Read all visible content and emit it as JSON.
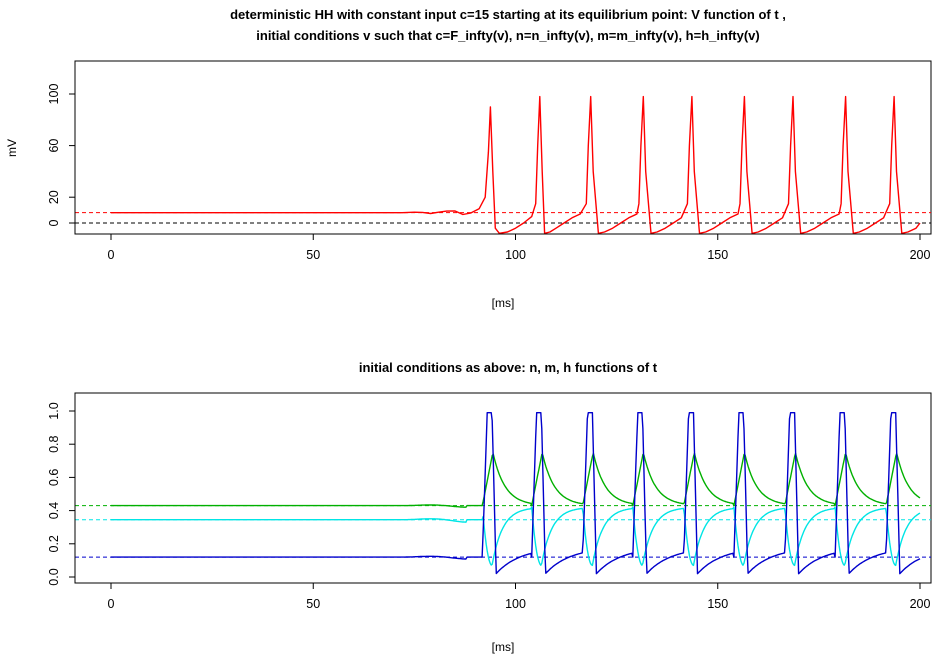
{
  "chart_data": [
    {
      "type": "line",
      "title_line1": "deterministic HH with constant input c=15 starting at its equilibrium point:  V  function of  t ,",
      "title_line2": "initial conditions v such that c=F_infty(v), n=n_infty(v), m=m_infty(v), h=h_infty(v)",
      "xlabel": "[ms]",
      "ylabel": "mV",
      "xlim": [
        0,
        200
      ],
      "ylim": [
        -10,
        120
      ],
      "x_ticks": [
        "0",
        "50",
        "100",
        "150",
        "200"
      ],
      "y_ticks": [
        "0",
        "20",
        "60",
        "100"
      ],
      "grid": false,
      "reference_lines": [
        {
          "y": 0,
          "color": "#000000",
          "style": "dashed"
        },
        {
          "y": 8,
          "color": "#ff0000",
          "style": "dashed"
        }
      ],
      "series": [
        {
          "color": "#ff0000",
          "x": [
            0,
            72,
            75,
            77,
            79,
            81,
            83,
            85,
            87,
            89,
            91,
            92.5,
            93.3,
            93.8,
            94.4,
            95,
            96,
            98,
            100,
            102,
            104,
            105,
            105.5,
            106,
            106.6,
            107.2,
            108.5,
            110,
            112,
            114,
            116,
            117.5,
            118,
            118.6,
            119.2,
            120.5,
            122,
            124,
            126,
            128,
            130,
            130.5,
            131,
            131.6,
            132.2,
            133.5,
            135,
            137,
            139,
            141,
            142.5,
            143,
            143.6,
            144.2,
            145.5,
            147,
            149,
            151,
            153,
            155,
            155.5,
            156,
            156.6,
            157.2,
            158.5,
            160,
            162,
            164,
            166,
            167.5,
            168,
            168.6,
            169.2,
            170.5,
            172,
            174,
            176,
            178,
            180,
            180.5,
            181,
            181.6,
            182.2,
            183.5,
            185,
            187,
            189,
            191,
            192.5,
            193,
            193.6,
            194.2,
            195.5,
            197,
            199,
            200
          ],
          "values": [
            8,
            8,
            8.4,
            8.2,
            7.4,
            8.4,
            9.2,
            9.4,
            6.6,
            7.8,
            11,
            20,
            55,
            90,
            40,
            -4,
            -8,
            -7,
            -4,
            0,
            5,
            15,
            60,
            98,
            40,
            -8,
            -7,
            -4,
            0,
            4,
            7,
            15,
            60,
            98,
            40,
            -8,
            -7,
            -4,
            0,
            4,
            7,
            15,
            60,
            98,
            40,
            -8,
            -7,
            -4,
            0,
            4,
            15,
            60,
            98,
            40,
            -8,
            -7,
            -4,
            0,
            4,
            7,
            15,
            60,
            98,
            40,
            -8,
            -7,
            -4,
            0,
            4,
            15,
            60,
            98,
            40,
            -8,
            -7,
            -4,
            0,
            4,
            7,
            15,
            60,
            98,
            40,
            -8,
            -7,
            -4,
            0,
            4,
            15,
            60,
            98,
            40,
            -8,
            -7,
            -4,
            0
          ]
        }
      ]
    },
    {
      "type": "line",
      "title": "initial conditions as above:  n, m, h  functions of  t",
      "xlabel": "[ms]",
      "xlim": [
        0,
        200
      ],
      "ylim": [
        -0.02,
        1.04
      ],
      "x_ticks": [
        "0",
        "50",
        "100",
        "150",
        "200"
      ],
      "y_ticks": [
        "0.0",
        "0.2",
        "0.4",
        "0.6",
        "0.8",
        "1.0"
      ],
      "grid": false,
      "reference_lines": [
        {
          "y": 0.43,
          "color": "#00b000",
          "style": "dashed"
        },
        {
          "y": 0.345,
          "color": "#00e5e5",
          "style": "dashed"
        },
        {
          "y": 0.12,
          "color": "#0000cc",
          "style": "dashed"
        }
      ],
      "spike_times": [
        93.8,
        106,
        118.6,
        131,
        143.6,
        156,
        168.6,
        181,
        193.6
      ],
      "series": [
        {
          "color": "#00b000",
          "equilibrium": 0.43,
          "peak": 0.75,
          "end": 0.44
        },
        {
          "color": "#00e5e5",
          "equilibrium": 0.345,
          "trough": 0.07,
          "recovery": 0.42,
          "end": 0.38
        },
        {
          "color": "#0000cc",
          "equilibrium": 0.12,
          "peak": 0.99,
          "after_spike": 0.02,
          "end": 0.04
        }
      ]
    }
  ]
}
